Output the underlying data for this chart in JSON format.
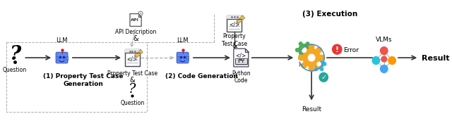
{
  "bg_color": "#ffffff",
  "fig_width": 6.4,
  "fig_height": 1.72,
  "dpi": 100,
  "labels": {
    "question": "Question",
    "step1_line1": "(1) Property Test Case",
    "step1_line2": "Generation",
    "api_desc": "API Description",
    "amp1": "&",
    "prop_test_case_mid": "Property Test Case",
    "amp2": "&",
    "question2": "Question",
    "llm1": "LLM",
    "llm2": "LLM",
    "step2": "(2) Code Generation",
    "prop_test_case_top": "Property\nTest Case",
    "amp3": "&",
    "py_label": "PY",
    "python_code": "Python\nCode",
    "step3": "(3) Execution",
    "error": "Error",
    "result_down": "Result",
    "vlms": "VLMs",
    "result_right": "Result"
  },
  "arrow_color": "#333333",
  "dashed_color": "#aaaaaa",
  "gear_orange": "#f5a623",
  "gear_green": "#4caf50",
  "gear_blue": "#29b6f6",
  "error_red": "#e53935",
  "check_teal": "#26a69a",
  "vlm_red": "#ef5350",
  "vlm_orange": "#ff9800",
  "vlm_blue1": "#42a5f5",
  "vlm_blue2": "#26c6da",
  "vlm_edge": "#999999"
}
